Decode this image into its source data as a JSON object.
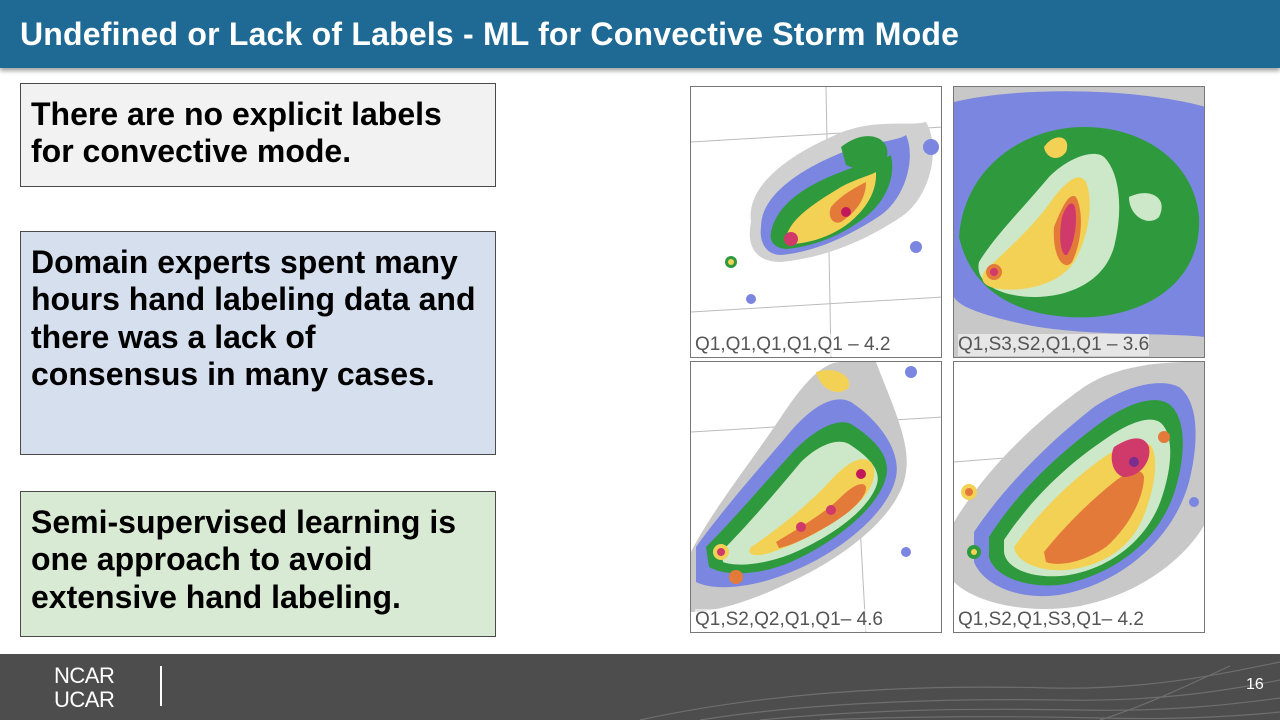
{
  "slide": {
    "title": "Undefined or Lack of Labels - ML for Convective Storm Mode",
    "page_number": "16"
  },
  "boxes": [
    {
      "text": "There are no explicit labels for convective mode."
    },
    {
      "text": "Domain experts spent many hours hand labeling data and there was a lack of consensus in many cases."
    },
    {
      "text": "Semi-supervised learning is one approach to avoid extensive hand labeling."
    }
  ],
  "panels": [
    {
      "caption": "Q1,Q1,Q1,Q1,Q1  – 4.2"
    },
    {
      "caption": "Q1,S3,S2,Q1,Q1 – 3.6"
    },
    {
      "caption": "Q1,S2,Q2,Q1,Q1– 4.6"
    },
    {
      "caption": "Q1,S2,Q1,S3,Q1– 4.2"
    }
  ],
  "footer": {
    "logo_line1": "NCAR",
    "logo_line2": "UCAR"
  },
  "colors": {
    "header": "#1f6a95",
    "box1": "#f2f2f2",
    "box2": "#d6dfee",
    "box3": "#d9ead4",
    "footer": "#4d4d4d"
  }
}
